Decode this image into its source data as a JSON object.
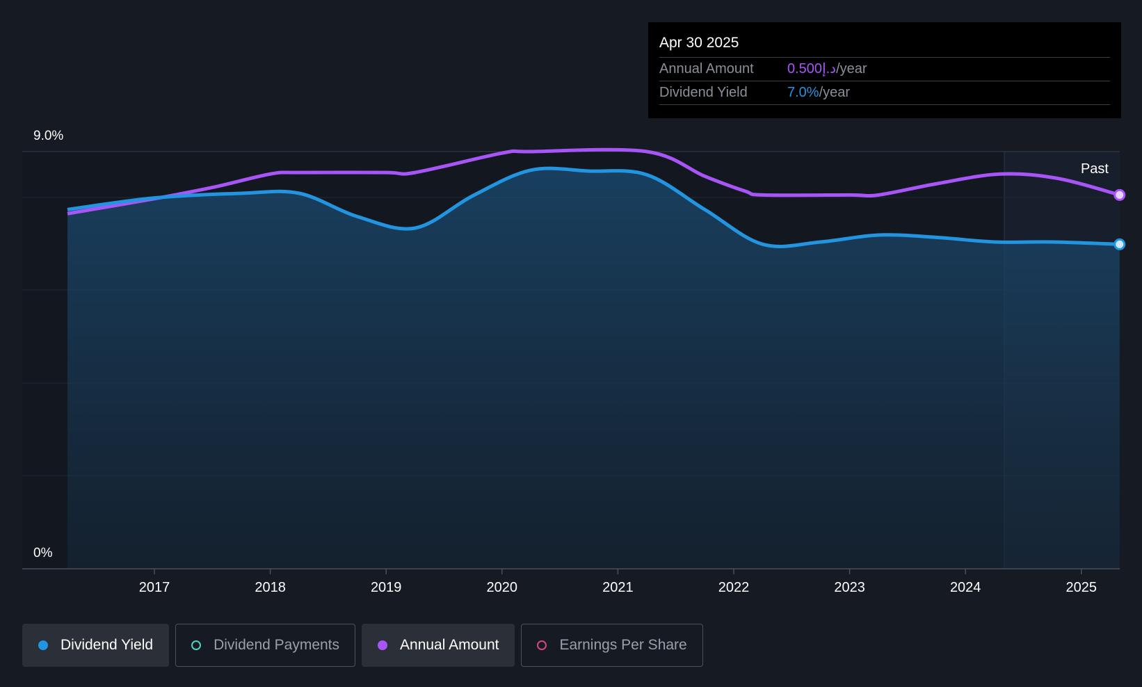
{
  "chart_data": {
    "type": "line",
    "y_axis": {
      "top_label": "9.0%",
      "bottom_label": "0%",
      "ylim": [
        0,
        9.0
      ]
    },
    "x_ticks": [
      "2017",
      "2018",
      "2019",
      "2020",
      "2021",
      "2022",
      "2023",
      "2024",
      "2025"
    ],
    "past_label": "Past",
    "series": [
      {
        "name": "Dividend Yield",
        "color": "#2394df",
        "unit": "%",
        "x": [
          2016.25,
          2017.0,
          2017.75,
          2018.25,
          2018.75,
          2019.25,
          2019.75,
          2020.25,
          2020.75,
          2021.25,
          2021.75,
          2022.25,
          2022.75,
          2023.25,
          2023.75,
          2024.25,
          2024.75,
          2025.33
        ],
        "values": [
          7.75,
          8.0,
          8.1,
          8.1,
          7.6,
          7.35,
          8.05,
          8.6,
          8.58,
          8.5,
          7.75,
          7.0,
          7.05,
          7.2,
          7.15,
          7.05,
          7.05,
          7.0
        ]
      },
      {
        "name": "Annual Amount",
        "color": "#a855f7",
        "unit": "AED",
        "x": [
          2016.25,
          2017.0,
          2017.5,
          2018.0,
          2018.25,
          2019.0,
          2019.25,
          2020.0,
          2020.25,
          2021.25,
          2021.75,
          2022.1,
          2022.25,
          2023.0,
          2023.25,
          2023.75,
          2024.3,
          2024.8,
          2025.33
        ],
        "values": [
          0.475,
          0.495,
          0.51,
          0.528,
          0.53,
          0.53,
          0.53,
          0.556,
          0.558,
          0.558,
          0.525,
          0.505,
          0.5,
          0.5,
          0.5,
          0.515,
          0.528,
          0.522,
          0.5
        ]
      }
    ],
    "legend": [
      {
        "name": "Dividend Yield",
        "active": true,
        "color": "#2394df",
        "filled": true
      },
      {
        "name": "Dividend Payments",
        "active": false,
        "color": "#4fd1c5",
        "filled": false
      },
      {
        "name": "Annual Amount",
        "active": true,
        "color": "#a855f7",
        "filled": true
      },
      {
        "name": "Earnings Per Share",
        "active": false,
        "color": "#d04a7c",
        "filled": false
      }
    ]
  },
  "tooltip": {
    "date": "Apr 30 2025",
    "rows": [
      {
        "label": "Annual Amount",
        "value": "0.500د.إ",
        "unit": "/year"
      },
      {
        "label": "Dividend Yield",
        "value": "7.0%",
        "unit": "/year"
      }
    ]
  }
}
